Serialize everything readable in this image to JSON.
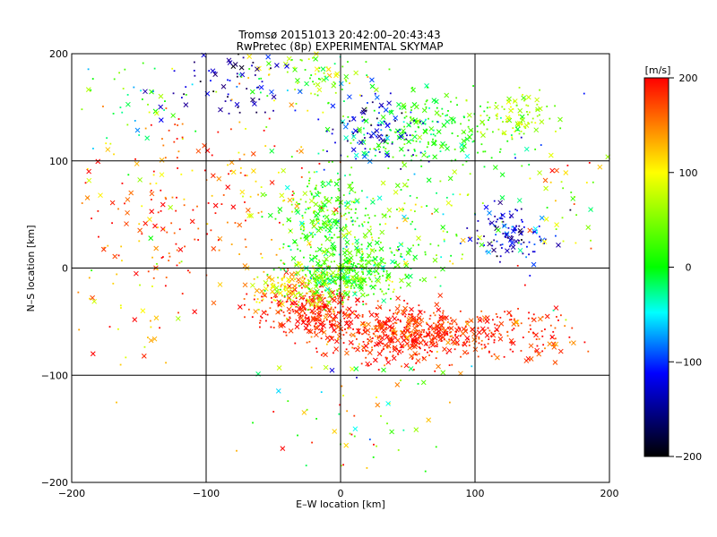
{
  "chart_data": {
    "type": "scatter",
    "title": "Tromsø 20151013 20:42:00–20:43:43",
    "subtitle": "RwPretec (8p) EXPERIMENTAL SKYMAP",
    "xlabel": "E–W location [km]",
    "ylabel": "N–S location [km]",
    "xlim": [
      -200,
      200
    ],
    "ylim": [
      -200,
      200
    ],
    "x_ticks": [
      -200,
      -100,
      0,
      100,
      200
    ],
    "y_ticks": [
      -200,
      -100,
      0,
      100,
      200
    ],
    "grid": true,
    "colorbar": {
      "label": "[m/s]",
      "range": [
        -200,
        200
      ],
      "ticks": [
        200,
        100,
        0,
        -100,
        -200
      ],
      "colors": [
        "#ff0000",
        "#ffff00",
        "#00ff00",
        "#00ffff",
        "#0000ff",
        "#000000"
      ]
    },
    "marker_types": [
      "dot",
      "x"
    ],
    "clusters": [
      {
        "x": 55,
        "y": -62,
        "sx": 28,
        "sy": 12,
        "count": 420,
        "v": 185,
        "vs": 20
      },
      {
        "x": -22,
        "y": -38,
        "sx": 18,
        "sy": 10,
        "count": 260,
        "v": 190,
        "vs": 18
      },
      {
        "x": 125,
        "y": -60,
        "sx": 30,
        "sy": 14,
        "count": 130,
        "v": 180,
        "vs": 25
      },
      {
        "x": 15,
        "y": -55,
        "sx": 25,
        "sy": 14,
        "count": 120,
        "v": 175,
        "vs": 25
      },
      {
        "x": -35,
        "y": -18,
        "sx": 18,
        "sy": 10,
        "count": 150,
        "v": 110,
        "vs": 30
      },
      {
        "x": 0,
        "y": -8,
        "sx": 22,
        "sy": 12,
        "count": 260,
        "v": 30,
        "vs": 35
      },
      {
        "x": 25,
        "y": 5,
        "sx": 18,
        "sy": 12,
        "count": 120,
        "v": 10,
        "vs": 35
      },
      {
        "x": -10,
        "y": 45,
        "sx": 18,
        "sy": 22,
        "count": 260,
        "v": 20,
        "vs": 35
      },
      {
        "x": 55,
        "y": 45,
        "sx": 35,
        "sy": 25,
        "count": 110,
        "v": 40,
        "vs": 45
      },
      {
        "x": 125,
        "y": 32,
        "sx": 14,
        "sy": 14,
        "count": 110,
        "v": -120,
        "vs": 30
      },
      {
        "x": 65,
        "y": 125,
        "sx": 30,
        "sy": 18,
        "count": 230,
        "v": 10,
        "vs": 25
      },
      {
        "x": 25,
        "y": 130,
        "sx": 18,
        "sy": 18,
        "count": 110,
        "v": -110,
        "vs": 35
      },
      {
        "x": 130,
        "y": 140,
        "sx": 15,
        "sy": 10,
        "count": 90,
        "v": 70,
        "vs": 20
      },
      {
        "x": -20,
        "y": 180,
        "sx": 25,
        "sy": 15,
        "count": 100,
        "v": 55,
        "vs": 45
      },
      {
        "x": -80,
        "y": 175,
        "sx": 20,
        "sy": 18,
        "count": 80,
        "v": -140,
        "vs": 40
      },
      {
        "x": -155,
        "y": 160,
        "sx": 25,
        "sy": 25,
        "count": 50,
        "v": 20,
        "vs": 80
      },
      {
        "x": -130,
        "y": 45,
        "sx": 40,
        "sy": 45,
        "count": 140,
        "v": 160,
        "vs": 50
      },
      {
        "x": -70,
        "y": 80,
        "sx": 35,
        "sy": 35,
        "count": 90,
        "v": 140,
        "vs": 60
      },
      {
        "x": 10,
        "y": -140,
        "sx": 35,
        "sy": 35,
        "count": 70,
        "v": 60,
        "vs": 90
      },
      {
        "x": 165,
        "y": 60,
        "sx": 25,
        "sy": 50,
        "count": 60,
        "v": 60,
        "vs": 90
      },
      {
        "x": -160,
        "y": -40,
        "sx": 25,
        "sy": 40,
        "count": 40,
        "v": 120,
        "vs": 60
      }
    ]
  }
}
